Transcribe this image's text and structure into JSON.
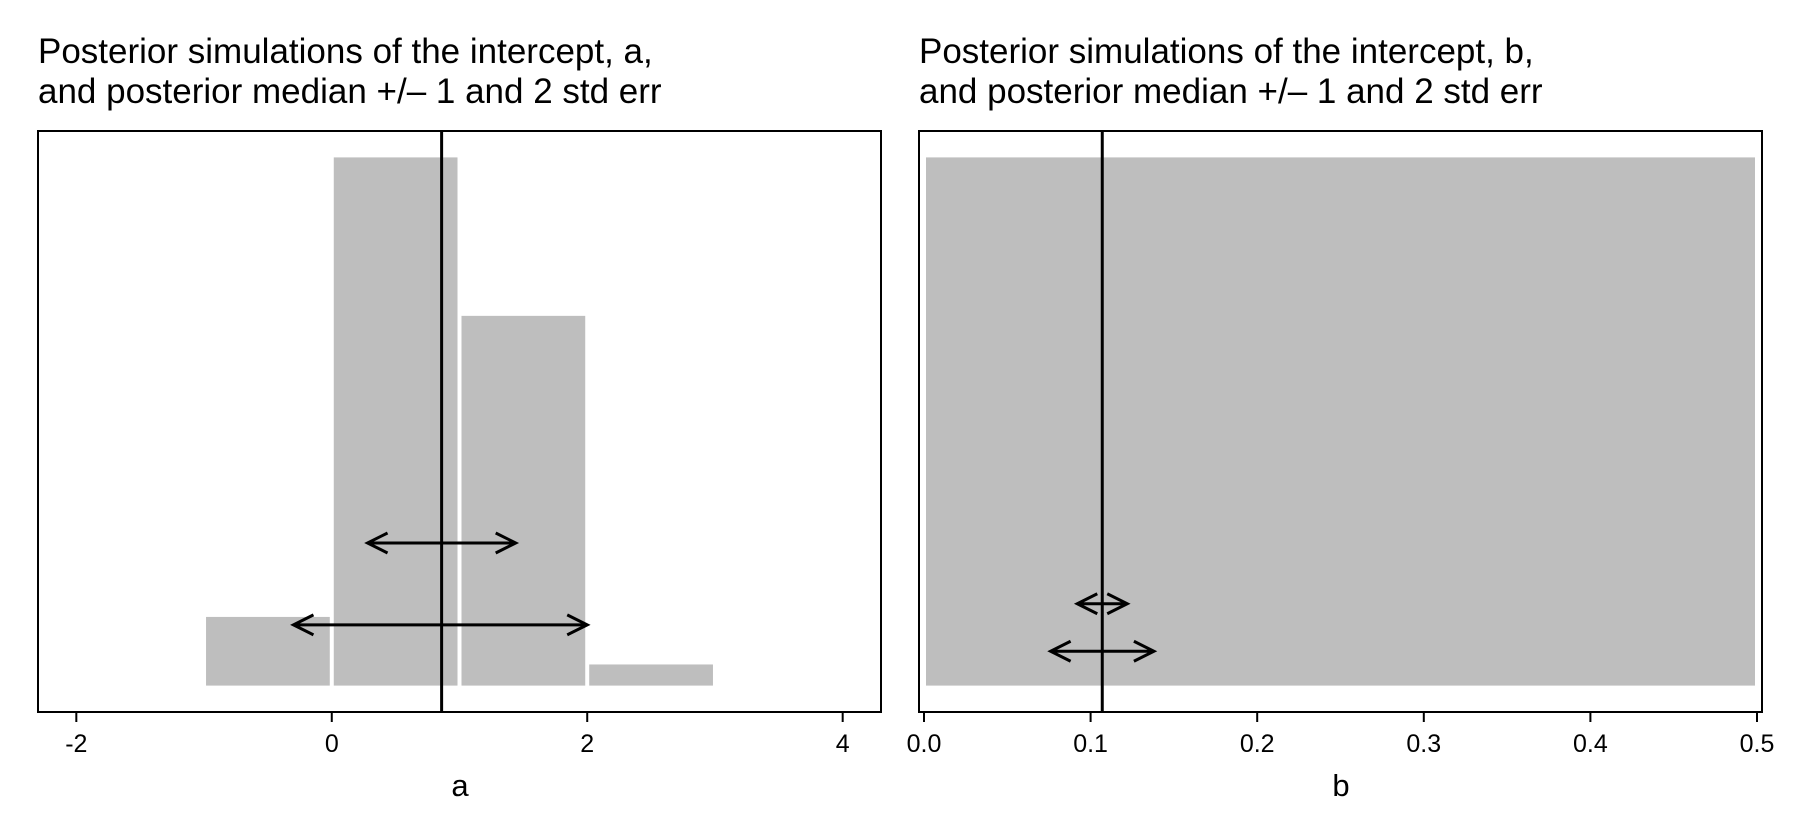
{
  "colors": {
    "bar_fill": "#bebebe",
    "line": "#000000",
    "background": "#ffffff"
  },
  "chart_data": [
    {
      "type": "bar",
      "title_lines": [
        "Posterior simulations of the intercept, a,",
        "and posterior median +/– 1 and 2 std err"
      ],
      "xlabel": "a",
      "ylabel": "",
      "xlim": [
        -2.3,
        4.3
      ],
      "ylim": [
        -0.05,
        1.05
      ],
      "x_ticks": [
        -2,
        0,
        2,
        4
      ],
      "x_tick_labels": [
        "-2",
        "0",
        "2",
        "4"
      ],
      "bins": [
        {
          "start": -1,
          "end": 0,
          "value": 0.13
        },
        {
          "start": 0,
          "end": 1,
          "value": 1.0
        },
        {
          "start": 1,
          "end": 2,
          "value": 0.7
        },
        {
          "start": 2,
          "end": 3,
          "value": 0.04
        }
      ],
      "median": 0.86,
      "interval_1se": {
        "low": 0.28,
        "high": 1.44,
        "y": 0.27
      },
      "interval_2se": {
        "low": -0.3,
        "high": 2.0,
        "y": 0.115
      },
      "grid": false,
      "y_axis_shown": false
    },
    {
      "type": "bar",
      "title_lines": [
        "Posterior simulations of the intercept, b,",
        "and posterior median +/– 1 and 2 std err"
      ],
      "xlabel": "b",
      "ylabel": "",
      "xlim": [
        -0.003,
        0.503
      ],
      "ylim": [
        -0.05,
        1.05
      ],
      "x_ticks": [
        0.0,
        0.1,
        0.2,
        0.3,
        0.4,
        0.5
      ],
      "x_tick_labels": [
        "0.0",
        "0.1",
        "0.2",
        "0.3",
        "0.4",
        "0.5"
      ],
      "bins": [
        {
          "start": 0.0,
          "end": 0.5,
          "value": 1.0
        }
      ],
      "median": 0.107,
      "interval_1se": {
        "low": 0.092,
        "high": 0.122,
        "y": 0.155
      },
      "interval_2se": {
        "low": 0.076,
        "high": 0.138,
        "y": 0.065
      },
      "grid": false,
      "y_axis_shown": false
    }
  ]
}
